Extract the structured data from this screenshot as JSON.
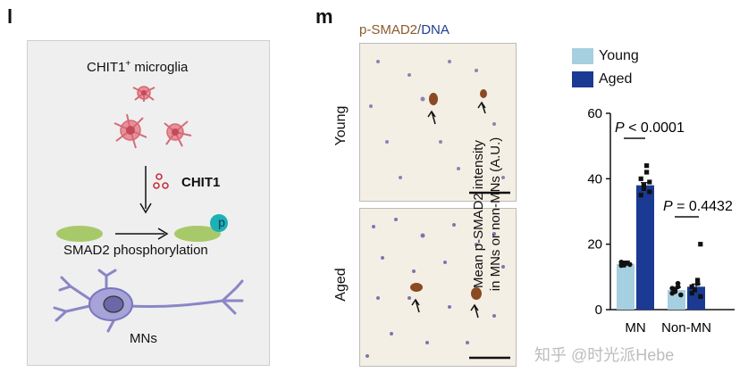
{
  "panel_l": {
    "letter": "l",
    "microglia_label": "CHIT1",
    "microglia_sup": "+",
    "microglia_suffix": " microglia",
    "chit1_label": "CHIT1",
    "phospho_badge": "p",
    "smad2_label": "SMAD2 phosphorylation",
    "mns_label": "MNs"
  },
  "panel_m": {
    "letter": "m",
    "stain_part1": "p-SMAD2",
    "stain_sep": "/",
    "stain_part2": "DNA",
    "row_young": "Young",
    "row_aged": "Aged"
  },
  "watermark": "知乎 @时光派Hebe",
  "colors": {
    "young": "#a6cfe0",
    "aged": "#1a3a94",
    "stain_brown": "#8b5a2b",
    "stain_blue": "#1f3f8f"
  },
  "chart_data": {
    "type": "bar",
    "ylabel_line1": "Mean p-SMAD2 intensity",
    "ylabel_line2": "in MNs or non-MNs (A.U.)",
    "categories": [
      "MN",
      "Non-MN"
    ],
    "ylim": [
      0,
      60
    ],
    "yticks": [
      "0",
      "20",
      "40",
      "60"
    ],
    "legend_placement": "top",
    "series": [
      {
        "name": "Young",
        "values": [
          14,
          6
        ],
        "points": [
          [
            13.5,
            14,
            14.2,
            13.8,
            14.5,
            13.6
          ],
          [
            5,
            6,
            7,
            4.5,
            6.5,
            5.5,
            8
          ]
        ]
      },
      {
        "name": "Aged",
        "values": [
          38,
          7
        ],
        "points": [
          [
            35,
            38,
            42,
            36,
            40,
            37,
            44,
            39
          ],
          [
            5,
            6,
            8,
            20,
            7,
            6,
            9,
            4
          ]
        ]
      }
    ],
    "annotations": [
      {
        "prefix": "P",
        "text": " < 0.0001"
      },
      {
        "prefix": "P",
        "text": " = 0.4432"
      }
    ]
  }
}
